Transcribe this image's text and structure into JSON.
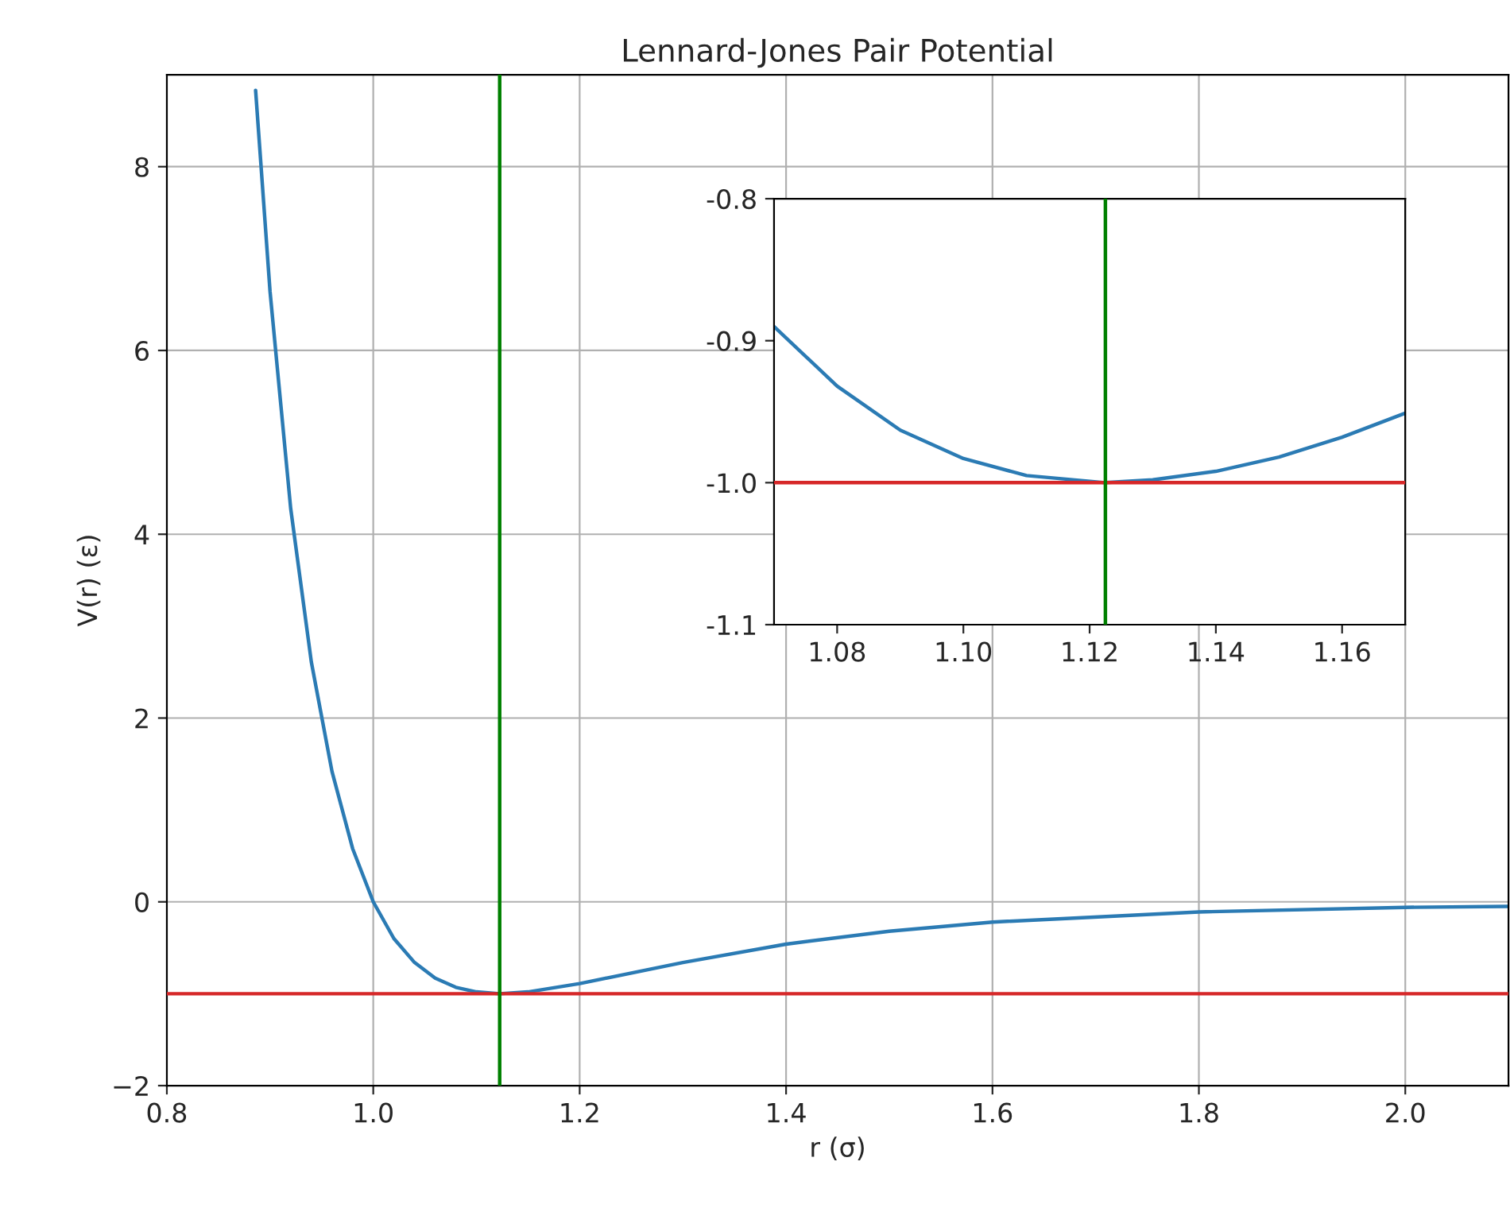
{
  "chart_data": [
    {
      "type": "line",
      "title": "Lennard-Jones Pair Potential",
      "xlabel": "r (σ)",
      "ylabel": "V(r) (ε)",
      "x": [
        0.886,
        0.9,
        0.92,
        0.94,
        0.96,
        0.98,
        1.0,
        1.02,
        1.04,
        1.06,
        1.08,
        1.1,
        1.1225,
        1.15,
        1.2,
        1.3,
        1.4,
        1.5,
        1.6,
        1.8,
        2.0,
        2.1
      ],
      "series": [
        {
          "color": "#2b7bb4",
          "values": [
            8.83,
            6.64,
            4.28,
            2.61,
            1.42,
            0.58,
            0,
            -0.4,
            -0.66,
            -0.83,
            -0.93,
            -0.98,
            -1.0,
            -0.98,
            -0.89,
            -0.66,
            -0.46,
            -0.32,
            -0.22,
            -0.11,
            -0.06,
            -0.05
          ]
        }
      ],
      "xlim": [
        0.8,
        2.1
      ],
      "ylim": [
        -2,
        9
      ],
      "xticks": [
        0.8,
        {
          "value": 1.0,
          "label": "1.0"
        },
        1.2,
        1.4,
        1.6,
        1.8,
        {
          "value": 2.0,
          "label": "2.0"
        }
      ],
      "yticks": [
        {
          "value": -2,
          "label": "−2"
        },
        0,
        2,
        4,
        6,
        8
      ],
      "grid": true,
      "ref_lines": [
        {
          "axis": "y",
          "value": -1,
          "color": "#d62728"
        },
        {
          "axis": "x",
          "value": 1.1225,
          "color": "#008000"
        }
      ]
    },
    {
      "type": "line",
      "x": [
        1.07,
        1.08,
        1.09,
        1.1,
        1.11,
        1.1225,
        1.13,
        1.14,
        1.15,
        1.16,
        1.17
      ],
      "series": [
        {
          "color": "#2b7bb4",
          "values": [
            -0.89,
            -0.932,
            -0.963,
            -0.983,
            -0.995,
            -1.0,
            -0.998,
            -0.992,
            -0.982,
            -0.968,
            -0.951
          ]
        }
      ],
      "xlim": [
        1.07,
        1.17
      ],
      "ylim": [
        -1.1,
        -0.8
      ],
      "xticks": [
        1.08,
        {
          "value": 1.1,
          "label": "1.10"
        },
        1.12,
        1.14,
        1.16
      ],
      "yticks": [
        {
          "value": -1.1,
          "label": "-1.1"
        },
        {
          "value": -1.0,
          "label": "-1.0"
        },
        {
          "value": -0.9,
          "label": "-0.9"
        },
        {
          "value": -0.8,
          "label": "-0.8"
        }
      ],
      "grid": false,
      "ref_lines": [
        {
          "axis": "y",
          "value": -1,
          "color": "#d62728"
        },
        {
          "axis": "x",
          "value": 1.1225,
          "color": "#008000"
        }
      ]
    }
  ]
}
